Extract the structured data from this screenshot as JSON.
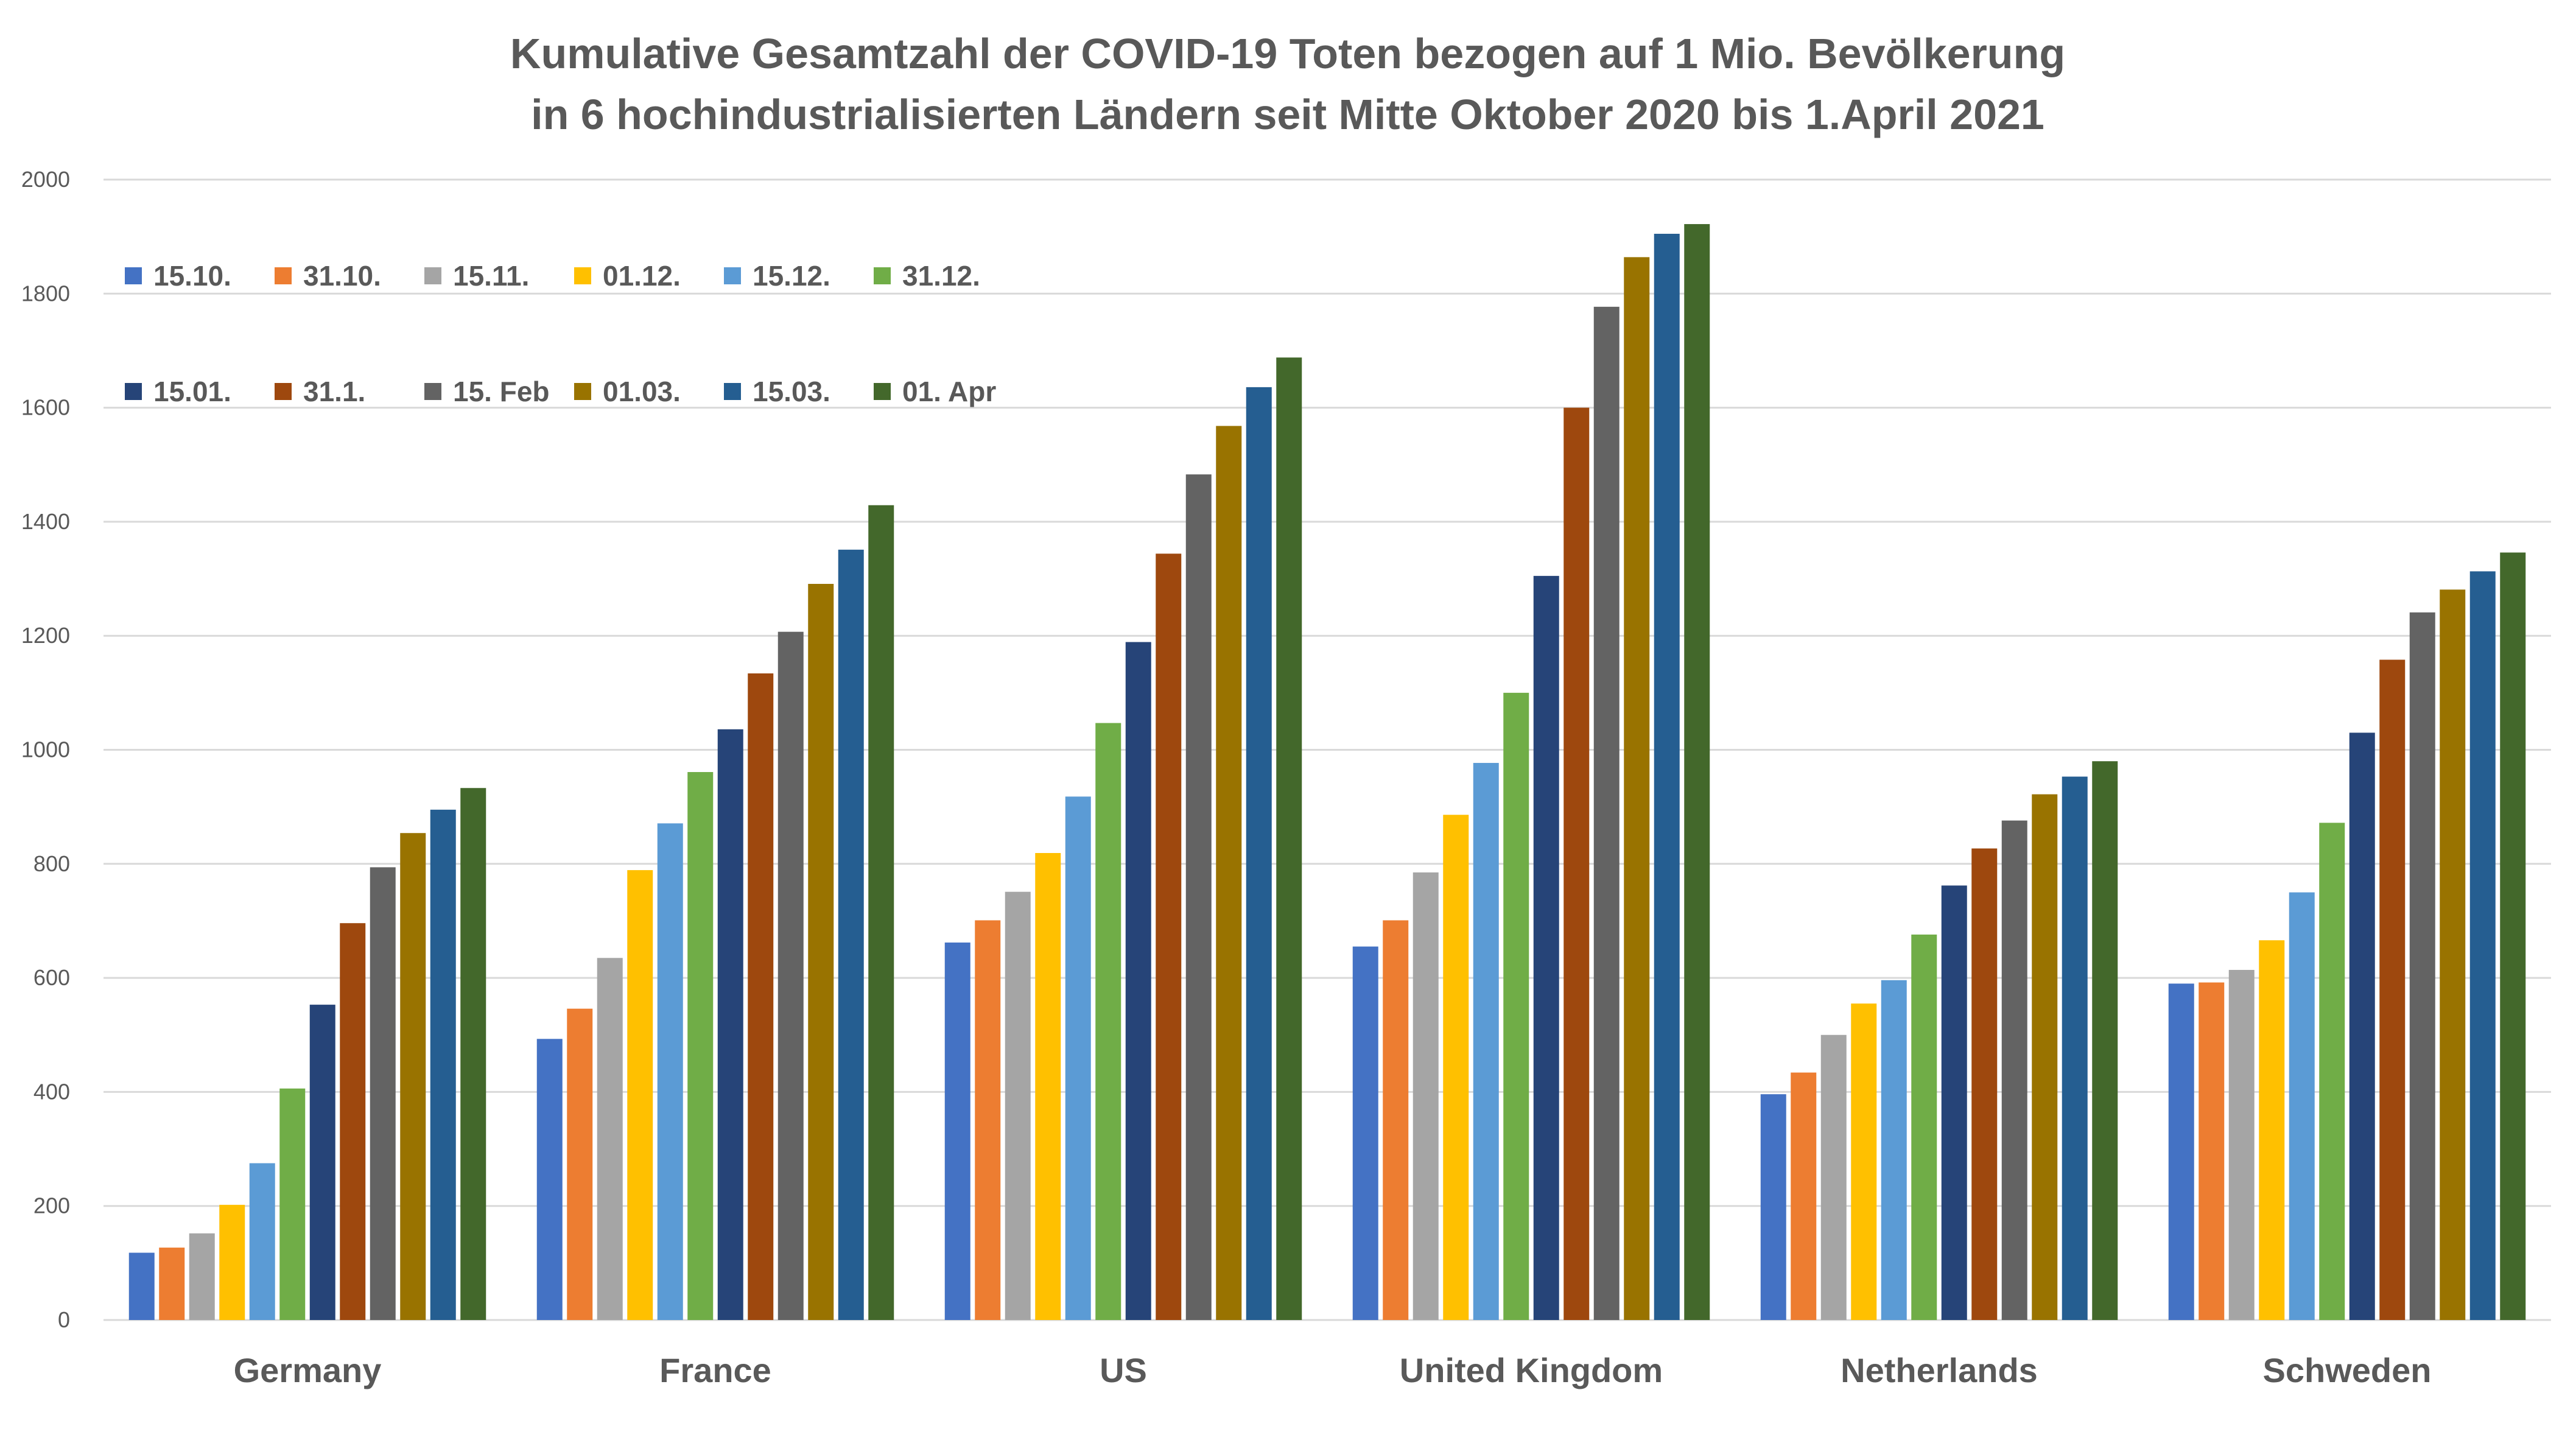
{
  "chart_data": {
    "type": "bar",
    "title": "Kumulative Gesamtzahl der COVID-19 Toten bezogen auf 1 Mio. Bevölkerung",
    "subtitle": "in 6 hochindustrialisierten Ländern seit Mitte Oktober 2020 bis 1.April 2021",
    "xlabel": "",
    "ylabel": "",
    "ylim": [
      0,
      2000
    ],
    "y_ticks": [
      0,
      200,
      400,
      600,
      800,
      1000,
      1200,
      1400,
      1600,
      1800,
      2000
    ],
    "grid": true,
    "legend_position": "top-left",
    "categories": [
      "Germany",
      "France",
      "US",
      "United Kingdom",
      "Netherlands",
      "Schweden"
    ],
    "series": [
      {
        "name": "15.10.",
        "color": "#4472C4",
        "values": [
          118,
          493,
          662,
          655,
          396,
          590
        ]
      },
      {
        "name": "31.10.",
        "color": "#ED7D31",
        "values": [
          127,
          546,
          701,
          701,
          434,
          592
        ]
      },
      {
        "name": "15.11.",
        "color": "#A5A5A5",
        "values": [
          152,
          635,
          751,
          785,
          500,
          614
        ]
      },
      {
        "name": "01.12.",
        "color": "#FFC000",
        "values": [
          202,
          789,
          819,
          886,
          555,
          666
        ]
      },
      {
        "name": "15.12.",
        "color": "#5B9BD5",
        "values": [
          275,
          871,
          918,
          977,
          596,
          750
        ]
      },
      {
        "name": "31.12.",
        "color": "#70AD47",
        "values": [
          406,
          961,
          1047,
          1100,
          676,
          872
        ]
      },
      {
        "name": "15.01.",
        "color": "#264478",
        "values": [
          553,
          1036,
          1189,
          1305,
          762,
          1030
        ]
      },
      {
        "name": "31.1.",
        "color": "#9E480E",
        "values": [
          696,
          1134,
          1344,
          1600,
          827,
          1158
        ]
      },
      {
        "name": "15. Feb",
        "color": "#636363",
        "values": [
          794,
          1207,
          1483,
          1777,
          876,
          1241
        ]
      },
      {
        "name": "01.03.",
        "color": "#997300",
        "values": [
          854,
          1291,
          1568,
          1864,
          922,
          1281
        ]
      },
      {
        "name": "15.03.",
        "color": "#255E91",
        "values": [
          895,
          1351,
          1636,
          1905,
          953,
          1313
        ]
      },
      {
        "name": "01. Apr",
        "color": "#43682B",
        "values": [
          933,
          1429,
          1688,
          1922,
          980,
          1346
        ]
      }
    ]
  }
}
